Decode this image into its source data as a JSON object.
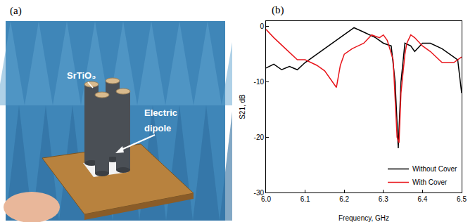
{
  "panel_a": {
    "label": "(a)",
    "annotations": [
      "SrTiO₃",
      "Electric dipole"
    ]
  },
  "chart_data": {
    "type": "line",
    "panel_label": "(b)",
    "x_label": "Frequency, GHz",
    "y_label": "S21, dB",
    "xlim": [
      6.0,
      6.5
    ],
    "xticks": [
      {
        "value": 6.0,
        "label": "6.0"
      },
      {
        "value": 6.1,
        "label": "6.1"
      },
      {
        "value": 6.2,
        "label": "6.2"
      },
      {
        "value": 6.3,
        "label": "6.3"
      },
      {
        "value": 6.4,
        "label": "6.4"
      },
      {
        "value": 6.5,
        "label": "6.5"
      }
    ],
    "ylim": [
      -30,
      1
    ],
    "yticks": [
      -30,
      -20,
      -10,
      0
    ],
    "grid": false,
    "legend": "lower right",
    "series": [
      {
        "name": "Without Cover",
        "color": "#000000",
        "x": [
          6.0,
          6.02,
          6.04,
          6.06,
          6.08,
          6.1,
          6.12,
          6.15,
          6.18,
          6.2,
          6.225,
          6.25,
          6.28,
          6.3,
          6.32,
          6.33,
          6.338,
          6.345,
          6.355,
          6.37,
          6.38,
          6.4,
          6.42,
          6.45,
          6.48,
          6.49,
          6.5
        ],
        "values": [
          -7.5,
          -6.8,
          -7.8,
          -7.2,
          -7.8,
          -6.5,
          -5.5,
          -4,
          -2.5,
          -1.5,
          -0.2,
          -1,
          -2,
          -3,
          -3.5,
          -10,
          -22,
          -10,
          -3,
          -3.5,
          -4.5,
          -3,
          -3,
          -4,
          -5.5,
          -6,
          -12
        ]
      },
      {
        "name": "With Cover",
        "color": "#e8151b",
        "x": [
          6.0,
          6.02,
          6.05,
          6.08,
          6.1,
          6.13,
          6.15,
          6.17,
          6.18,
          6.19,
          6.2,
          6.22,
          6.25,
          6.27,
          6.29,
          6.3,
          6.31,
          6.325,
          6.335,
          6.34,
          6.345,
          6.355,
          6.36,
          6.37,
          6.38,
          6.4,
          6.42,
          6.45,
          6.48,
          6.5
        ],
        "values": [
          -0.5,
          -2,
          -4,
          -6,
          -6,
          -7,
          -8,
          -10,
          -11,
          -7,
          -5,
          -4,
          -3,
          -1.5,
          -2,
          -1.5,
          -2.5,
          -6,
          -20,
          -21,
          -12,
          -5,
          -3,
          -1.5,
          -2,
          -3.5,
          -4.5,
          -6.5,
          -6.5,
          -5.5
        ]
      }
    ]
  }
}
